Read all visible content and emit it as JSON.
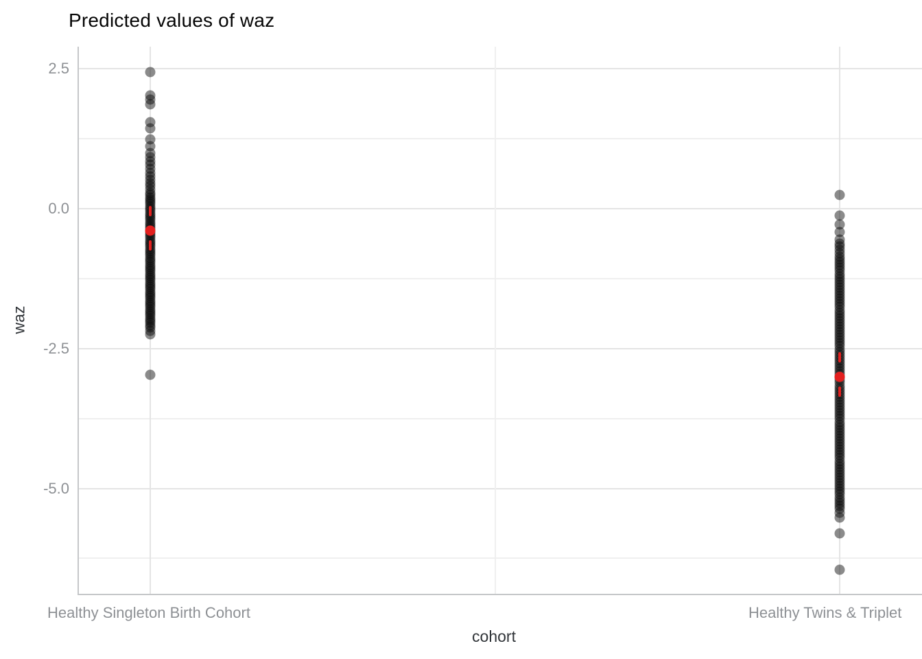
{
  "title": "Predicted values of waz",
  "axes": {
    "y_label": "waz",
    "x_label": "cohort",
    "y_ticks": [
      "2.5",
      "0.0",
      "-2.5",
      "-5.0"
    ],
    "y_tick_values": [
      2.5,
      0.0,
      -2.5,
      -5.0
    ],
    "y_minor_values": [
      1.25,
      -1.25,
      -3.75,
      -6.25
    ],
    "x_categories": [
      "Healthy Singleton Birth Cohort",
      "Healthy Twins & Triplet"
    ]
  },
  "colors": {
    "point": "rgba(8,8,8,0.47)",
    "mean": "#e3201f",
    "axis_line": "#c5c7c9",
    "grid_major": "#e4e4e4",
    "grid_minor": "#efefef",
    "tick_text": "#8d9094",
    "axis_title_text": "#2f3337",
    "title_text": "#050505",
    "background": "#ffffff"
  },
  "chart_data": {
    "type": "scatter",
    "subtype": "strip-plot-with-mean-and-ci",
    "title": "Predicted values of waz",
    "xlabel": "cohort",
    "ylabel": "waz",
    "ylim": [
      -6.9,
      2.9
    ],
    "y_major_ticks": [
      2.5,
      0.0,
      -2.5,
      -5.0
    ],
    "y_minor_gridlines": [
      1.25,
      -1.25,
      -3.75,
      -6.25
    ],
    "grid": true,
    "legend": false,
    "categories": [
      "Healthy Singleton Birth Cohort",
      "Healthy Twins & Triplet"
    ],
    "series": [
      {
        "name": "Healthy Singleton Birth Cohort",
        "mean": -0.39,
        "ci_high": 0.05,
        "ci_low": -0.75,
        "points": [
          2.44,
          2.02,
          1.95,
          1.86,
          1.55,
          1.43,
          1.24,
          1.12,
          1.0,
          0.92,
          0.85,
          0.78,
          0.71,
          0.64,
          0.58,
          0.52,
          0.46,
          0.4,
          0.34,
          0.28,
          0.24,
          0.2,
          0.16,
          0.12,
          0.08,
          0.04,
          0.0,
          -0.04,
          -0.08,
          -0.12,
          -0.16,
          -0.2,
          -0.24,
          -0.28,
          -0.32,
          -0.36,
          -0.4,
          -0.44,
          -0.48,
          -0.52,
          -0.56,
          -0.6,
          -0.64,
          -0.68,
          -0.72,
          -0.76,
          -0.8,
          -0.84,
          -0.88,
          -0.92,
          -0.96,
          -1.0,
          -1.04,
          -1.08,
          -1.12,
          -1.16,
          -1.2,
          -1.24,
          -1.28,
          -1.32,
          -1.36,
          -1.4,
          -1.44,
          -1.48,
          -1.52,
          -1.56,
          -1.6,
          -1.64,
          -1.68,
          -1.72,
          -1.76,
          -1.8,
          -1.84,
          -1.88,
          -1.92,
          -1.96,
          -2.0,
          -2.04,
          -2.08,
          -2.12,
          -2.18,
          -2.24,
          -2.97
        ]
      },
      {
        "name": "Healthy Twins & Triplet",
        "mean": -3.01,
        "ci_high": -2.57,
        "ci_low": -3.36,
        "points": [
          0.24,
          -0.12,
          -0.28,
          -0.42,
          -0.55,
          -0.62,
          -0.68,
          -0.74,
          -0.8,
          -0.86,
          -0.91,
          -0.96,
          -1.01,
          -1.06,
          -1.11,
          -1.16,
          -1.21,
          -1.26,
          -1.31,
          -1.36,
          -1.41,
          -1.46,
          -1.51,
          -1.56,
          -1.61,
          -1.66,
          -1.71,
          -1.76,
          -1.81,
          -1.86,
          -1.91,
          -1.96,
          -2.01,
          -2.06,
          -2.11,
          -2.16,
          -2.21,
          -2.26,
          -2.31,
          -2.36,
          -2.41,
          -2.46,
          -2.51,
          -2.56,
          -2.61,
          -2.66,
          -2.71,
          -2.76,
          -2.81,
          -2.86,
          -2.91,
          -2.96,
          -3.01,
          -3.06,
          -3.11,
          -3.16,
          -3.21,
          -3.26,
          -3.31,
          -3.36,
          -3.41,
          -3.46,
          -3.51,
          -3.56,
          -3.61,
          -3.66,
          -3.71,
          -3.76,
          -3.81,
          -3.86,
          -3.91,
          -3.96,
          -4.01,
          -4.06,
          -4.11,
          -4.16,
          -4.21,
          -4.26,
          -4.31,
          -4.36,
          -4.41,
          -4.46,
          -4.51,
          -4.56,
          -4.61,
          -4.66,
          -4.71,
          -4.76,
          -4.81,
          -4.86,
          -4.91,
          -4.96,
          -5.01,
          -5.06,
          -5.11,
          -5.16,
          -5.21,
          -5.26,
          -5.31,
          -5.36,
          -5.44,
          -5.52,
          -5.8,
          -6.45
        ]
      }
    ]
  }
}
